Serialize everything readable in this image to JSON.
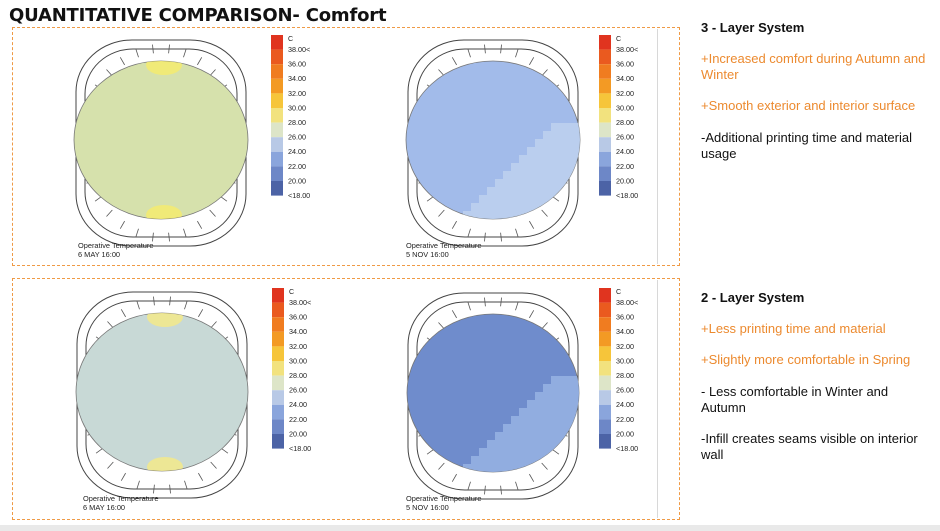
{
  "title": "QUANTITATIVE COMPARISON- Comfort",
  "legend": {
    "unit": "C",
    "labels": [
      "38.00<",
      "36.00",
      "34.00",
      "32.00",
      "30.00",
      "28.00",
      "26.00",
      "24.00",
      "22.00",
      "20.00",
      "<18.00"
    ],
    "colors": [
      "#e0341f",
      "#ea5a1f",
      "#f07c20",
      "#f39a24",
      "#f6c53a",
      "#f2e27e",
      "#dde5c8",
      "#b8c9e6",
      "#8aa5dc",
      "#6d87c7",
      "#4c63a6"
    ]
  },
  "panels": [
    {
      "caption_line1": "Operative Temperature",
      "caption_line2": "6 MAY 16:00",
      "fill_color": "#d6e1ac",
      "accent": "#f5eb6e",
      "seam_color": null
    },
    {
      "caption_line1": "Operative Temperature",
      "caption_line2": "5 NOV 16:00",
      "fill_color": "#a2bbea",
      "accent": null,
      "seam_color": "#bcd0ee"
    },
    {
      "caption_line1": "Operative Temperature",
      "caption_line2": "6 MAY 16:00",
      "fill_color": "#c8d9d6",
      "accent": "#f3e98a",
      "seam_color": null
    },
    {
      "caption_line1": "Operative Temperature",
      "caption_line2": "5 NOV 16:00",
      "fill_color": "#6f8ccc",
      "accent": null,
      "seam_color": "#95b0e2"
    }
  ],
  "systems": [
    {
      "title": "3 - Layer System",
      "points": [
        {
          "text": "+Increased comfort during Autumn and Winter",
          "kind": "positive"
        },
        {
          "text": "+Smooth exterior and interior surface",
          "kind": "positive"
        },
        {
          "text": "-Additional printing time and material usage",
          "kind": "negative"
        }
      ]
    },
    {
      "title": "2 - Layer System",
      "points": [
        {
          "text": "+Less printing time and material",
          "kind": "positive"
        },
        {
          "text": "+Slightly more comfortable in Spring",
          "kind": "positive"
        },
        {
          "text": "- Less comfortable in Winter and Autumn",
          "kind": "negative"
        },
        {
          "text": "-Infill creates seams visible on interior wall",
          "kind": "negative"
        }
      ]
    }
  ]
}
